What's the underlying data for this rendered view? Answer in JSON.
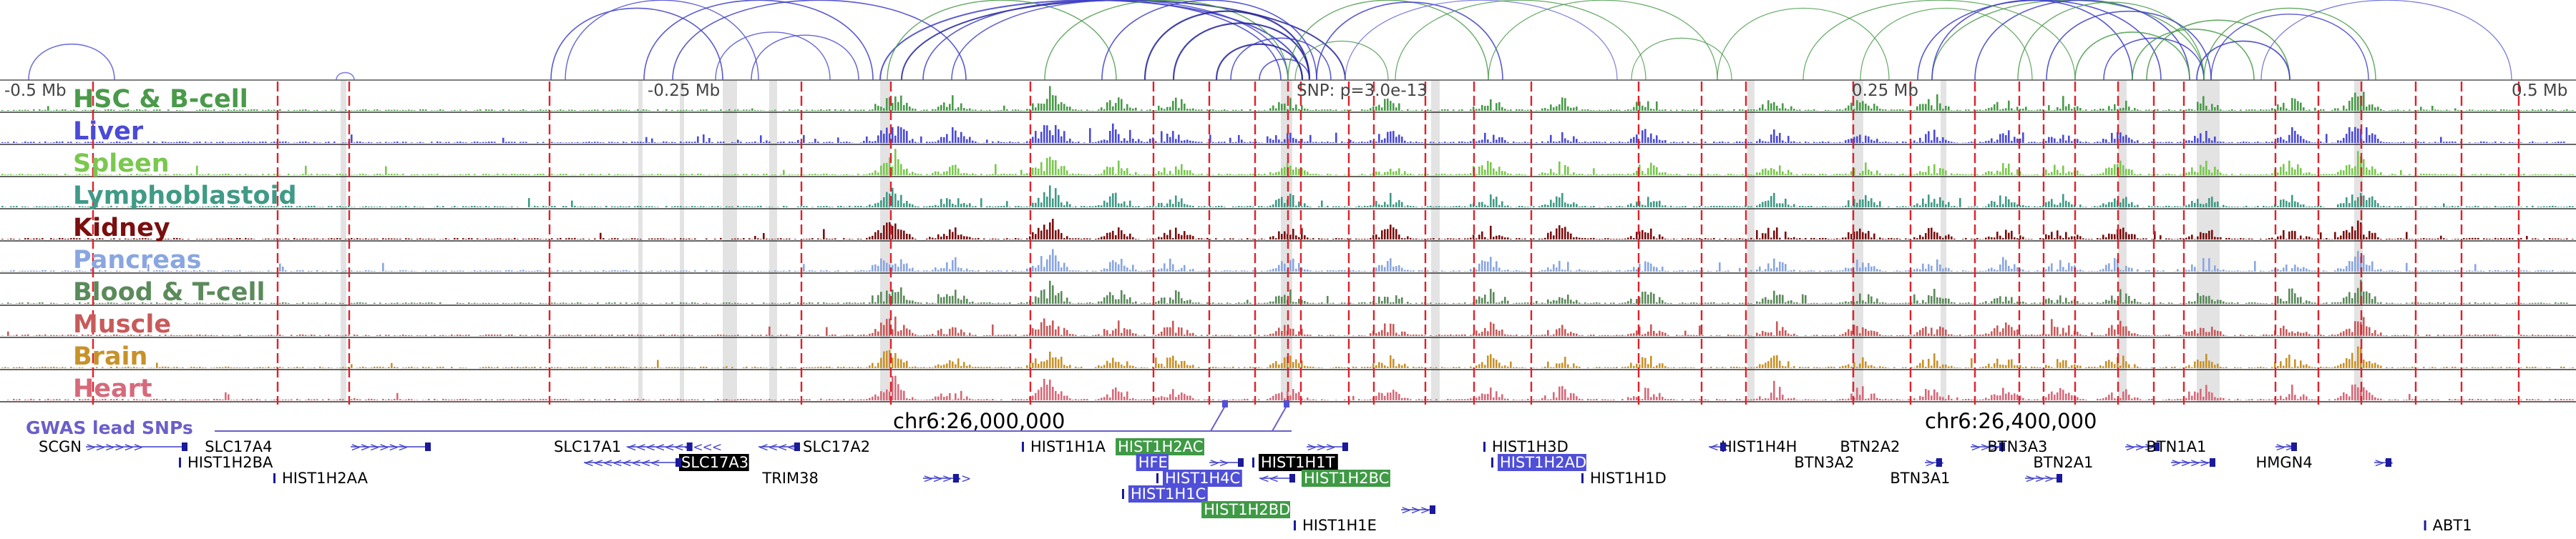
{
  "browser": {
    "axis_labels": [
      "-0.5 Mb",
      "-0.25 Mb",
      "SNP: p=3.0e-13",
      "0.25 Mb",
      "0.5 Mb"
    ],
    "snp_label": "SNP: p=3.0e-13",
    "coordinates": [
      "chr6:26,000,000",
      "chr6:26,400,000"
    ],
    "gwas_label": "GWAS lead SNPs"
  },
  "tracks": [
    {
      "name": "HSC & B-cell",
      "color": "#4a9a4a"
    },
    {
      "name": "Liver",
      "color": "#4b4bd6"
    },
    {
      "name": "Spleen",
      "color": "#7ac84e"
    },
    {
      "name": "Lymphoblastoid",
      "color": "#3f9a86"
    },
    {
      "name": "Kidney",
      "color": "#7a0f0f"
    },
    {
      "name": "Pancreas",
      "color": "#8aa6e0"
    },
    {
      "name": "Blood & T-cell",
      "color": "#5b8a5b"
    },
    {
      "name": "Muscle",
      "color": "#c85a5a"
    },
    {
      "name": "Brain",
      "color": "#c8922a"
    },
    {
      "name": "Heart",
      "color": "#d66a7a"
    }
  ],
  "genes": [
    {
      "name": "SCGN",
      "style": "plain",
      "arrows": ">>>>>>"
    },
    {
      "name": "HIST1H2BA",
      "style": "plain",
      "arrows": ""
    },
    {
      "name": "SLC17A4",
      "style": "plain",
      "arrows": ">>>>>>"
    },
    {
      "name": "HIST1H2AA",
      "style": "plain",
      "arrows": ""
    },
    {
      "name": "SLC17A1",
      "style": "plain",
      "arrows": "<<<<<<<<<<"
    },
    {
      "name": "SLC17A3",
      "style": "black",
      "arrows": "<<<<<<<<"
    },
    {
      "name": "SLC17A2",
      "style": "plain",
      "arrows": "<<<<"
    },
    {
      "name": "TRIM38",
      "style": "plain",
      "arrows": ">>>>>"
    },
    {
      "name": "HIST1H1A",
      "style": "plain",
      "arrows": ""
    },
    {
      "name": "HIST1H2AC",
      "style": "green",
      "arrows": ">>>"
    },
    {
      "name": "HFE",
      "style": "blue",
      "arrows": ">>"
    },
    {
      "name": "HIST1H1T",
      "style": "black",
      "arrows": ""
    },
    {
      "name": "HIST1H4C",
      "style": "blue",
      "arrows": ""
    },
    {
      "name": "HIST1H2BC",
      "style": "green",
      "arrows": "<<"
    },
    {
      "name": "HIST1H1C",
      "style": "blue",
      "arrows": ""
    },
    {
      "name": "HIST1H2BD",
      "style": "green",
      "arrows": ">>>"
    },
    {
      "name": "HIST1H1E",
      "style": "plain",
      "arrows": ""
    },
    {
      "name": "HIST1H3D",
      "style": "plain",
      "arrows": ""
    },
    {
      "name": "HIST1H2AD",
      "style": "blue",
      "arrows": ""
    },
    {
      "name": "HIST1H1D",
      "style": "plain",
      "arrows": ""
    },
    {
      "name": "HIST1H4H",
      "style": "plain",
      "arrows": "<<"
    },
    {
      "name": "BTN2A2",
      "style": "plain",
      "arrows": ">>>"
    },
    {
      "name": "BTN3A2",
      "style": "plain",
      "arrows": ">>"
    },
    {
      "name": "BTN3A3",
      "style": "plain",
      "arrows": ">>>"
    },
    {
      "name": "BTN3A1",
      "style": "plain",
      "arrows": ">>>"
    },
    {
      "name": "BTN2A1",
      "style": "plain",
      "arrows": ">>>>"
    },
    {
      "name": "BTN1A1",
      "style": "plain",
      "arrows": ">>"
    },
    {
      "name": "HMGN4",
      "style": "plain",
      "arrows": ">>"
    },
    {
      "name": "ABT1",
      "style": "plain",
      "arrows": ""
    }
  ]
}
